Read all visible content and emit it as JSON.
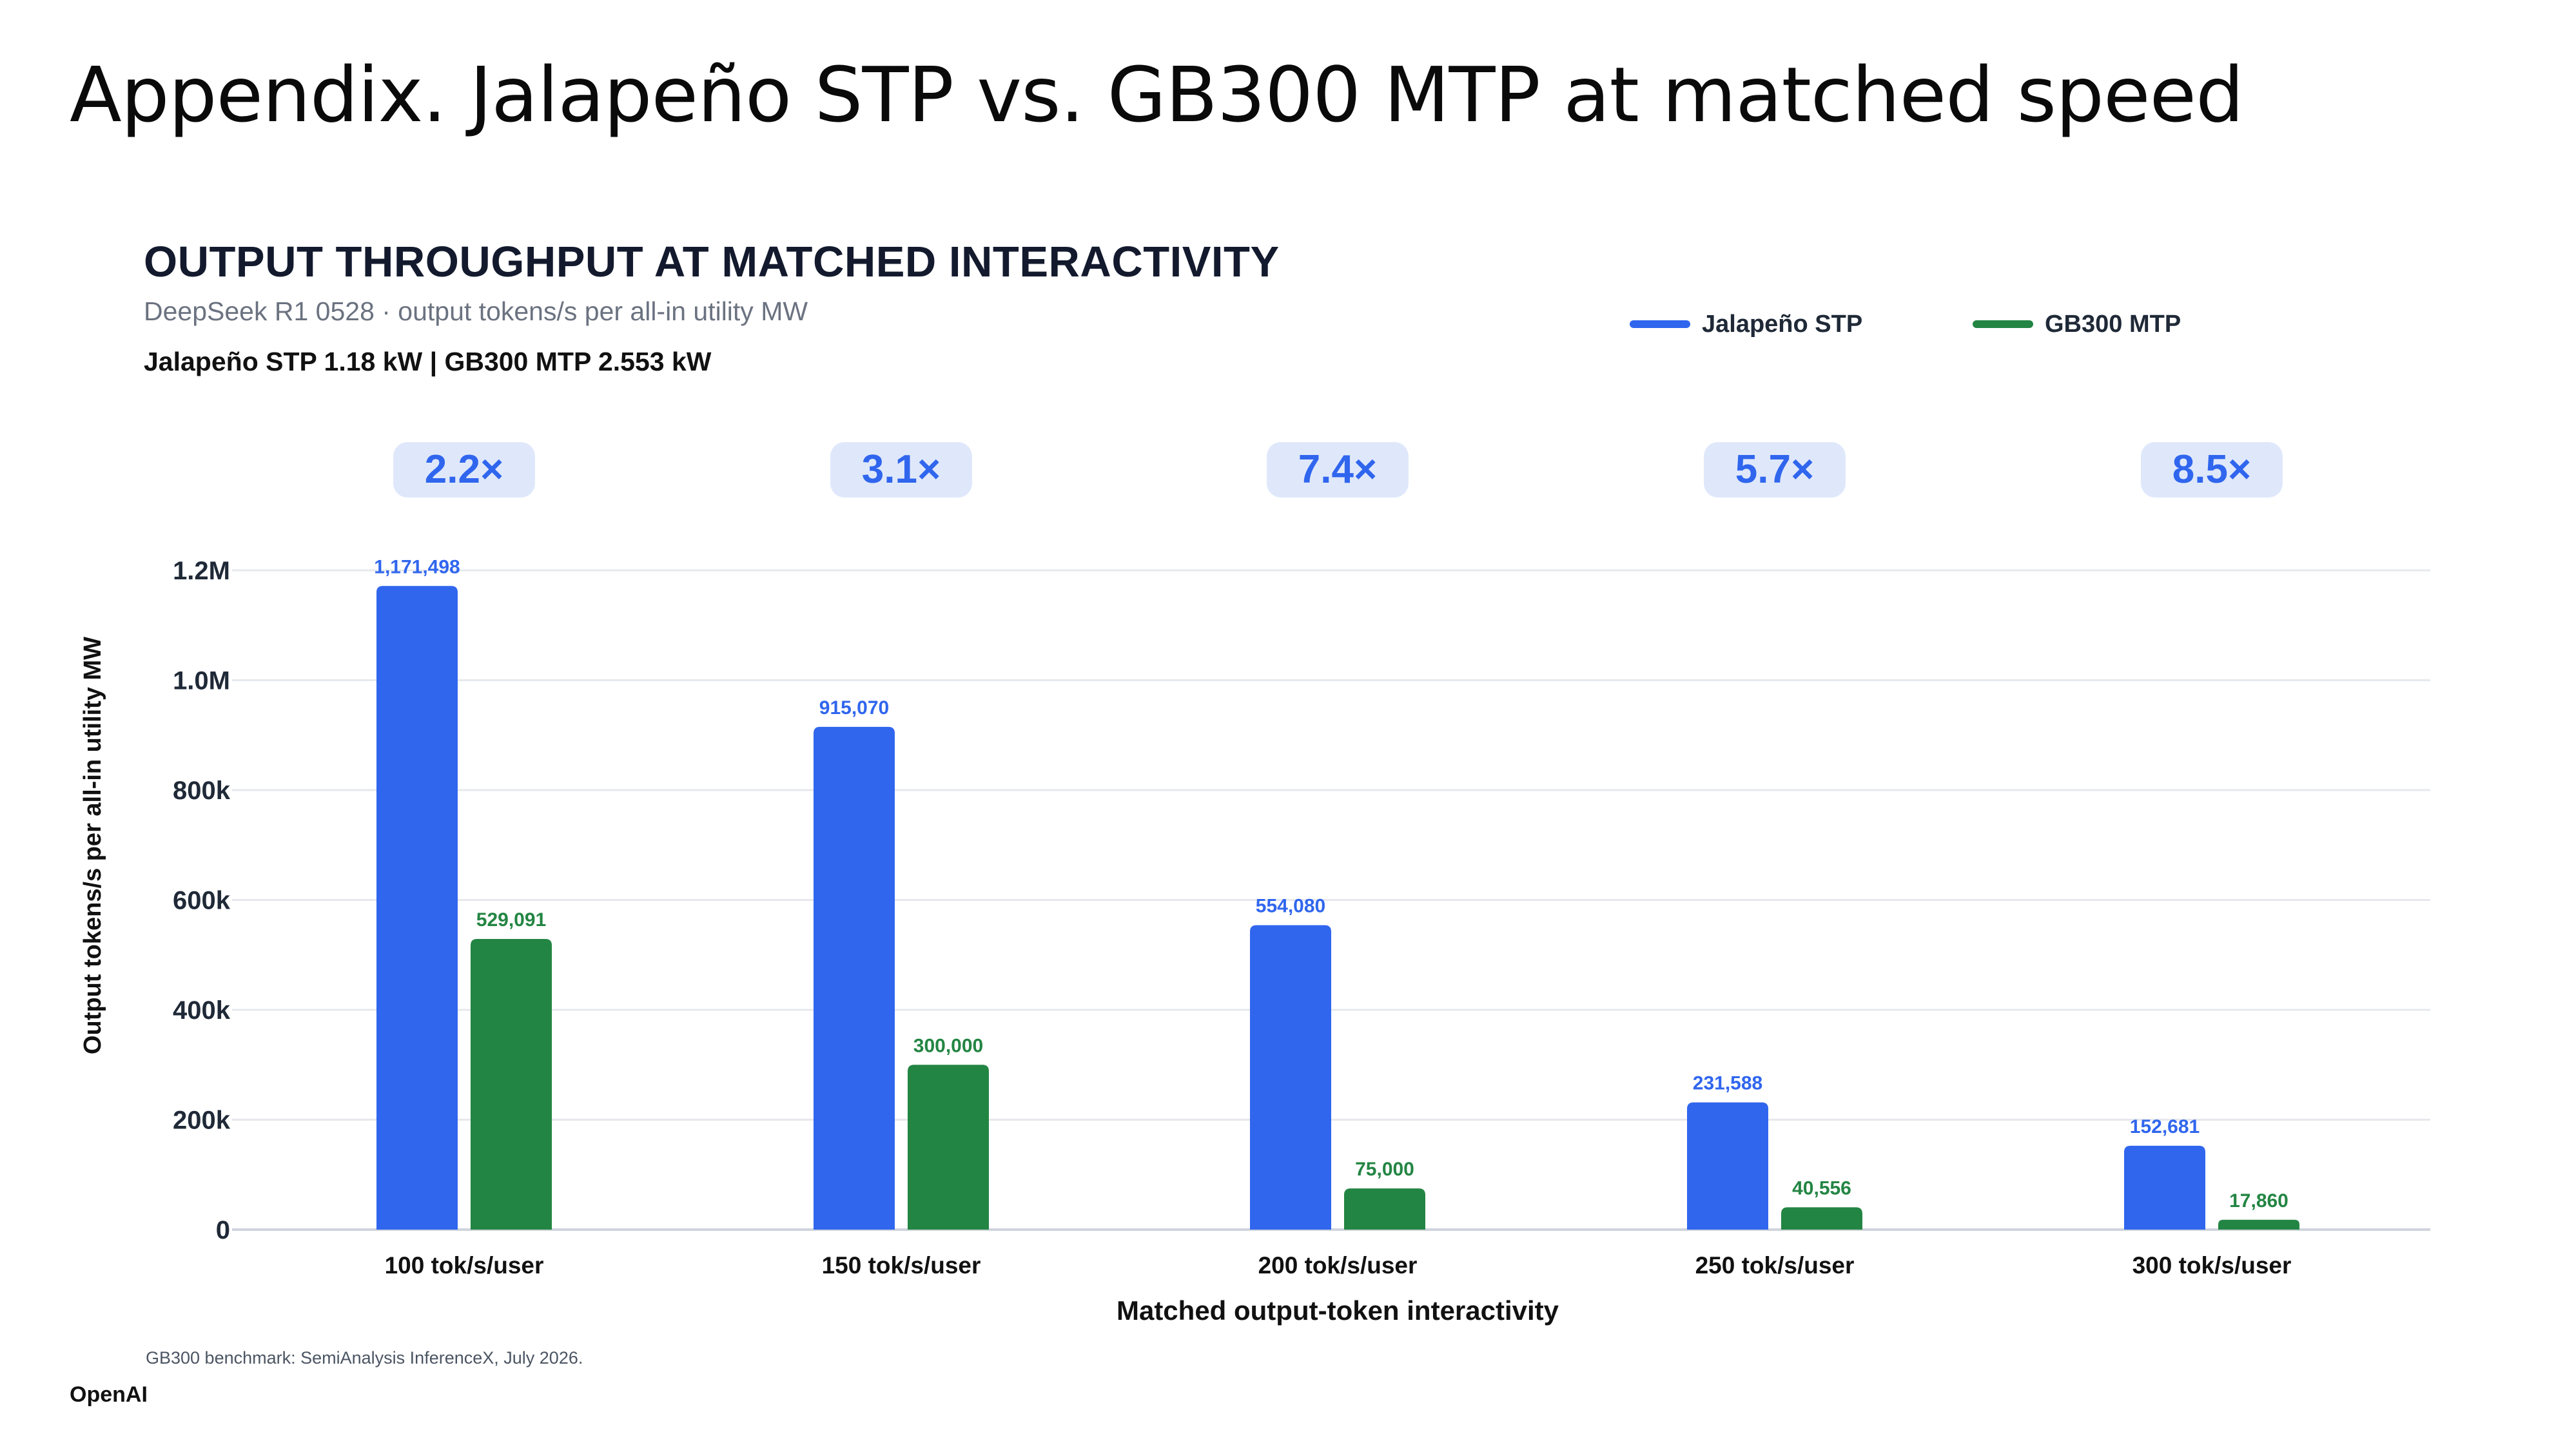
{
  "slide": {
    "title": "Appendix. Jalapeño STP vs. GB300 MTP at matched speed",
    "brand": "OpenAI"
  },
  "chart_data": {
    "type": "bar",
    "title": "OUTPUT THROUGHPUT AT MATCHED INTERACTIVITY",
    "subtitle": "DeepSeek R1 0528 · output tokens/s per all-in utility MW",
    "note": "Jalapeño STP 1.18 kW | GB300 MTP 2.553 kW",
    "xlabel": "Matched output-token interactivity",
    "ylabel": "Output tokens/s per all-in utility MW",
    "ylim": [
      0,
      1200000
    ],
    "yticks": [
      0,
      200000,
      400000,
      600000,
      800000,
      1000000,
      1200000
    ],
    "ytick_labels": [
      "0",
      "200k",
      "400k",
      "600k",
      "800k",
      "1.0M",
      "1.2M"
    ],
    "grid": true,
    "legend_position": "top-right",
    "categories": [
      "100 tok/s/user",
      "150 tok/s/user",
      "200 tok/s/user",
      "250 tok/s/user",
      "300 tok/s/user"
    ],
    "series": [
      {
        "name": "Jalapeño STP",
        "color": "#3066ee",
        "values": [
          1171498,
          915070,
          554080,
          231588,
          152681
        ],
        "labels": [
          "1,171,498",
          "915,070",
          "554,080",
          "231,588",
          "152,681"
        ]
      },
      {
        "name": "GB300 MTP",
        "color": "#238543",
        "values": [
          529091,
          300000,
          75000,
          40556,
          17860
        ],
        "labels": [
          "529,091",
          "300,000",
          "75,000",
          "40,556",
          "17,860"
        ]
      }
    ],
    "ratios": [
      "2.2×",
      "3.1×",
      "7.4×",
      "5.7×",
      "8.5×"
    ],
    "ratio_badge_color": "#dfe8fb",
    "ratio_text_color": "#3066ee",
    "footnote": "GB300 benchmark: SemiAnalysis InferenceX, July 2026."
  }
}
